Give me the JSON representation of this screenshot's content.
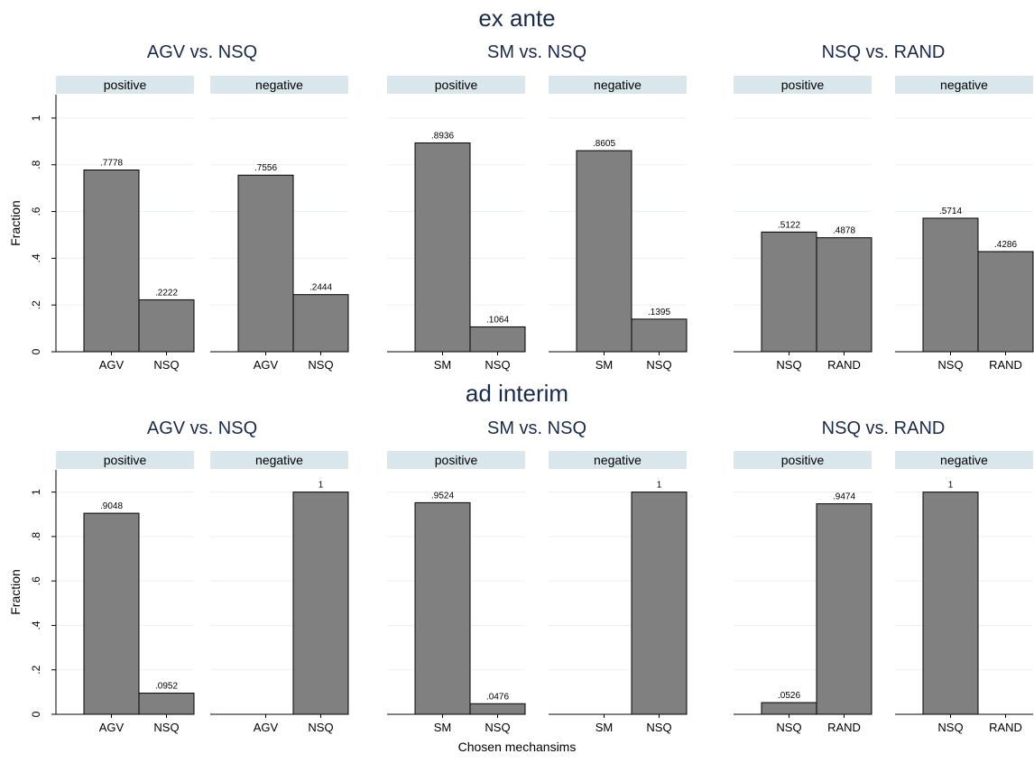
{
  "chart_data": {
    "type": "bar",
    "xlabel": "Chosen mechansims",
    "ylabel": "Fraction",
    "ylim": [
      0,
      1.1
    ],
    "yticks": [
      0,
      0.2,
      0.4,
      0.6,
      0.8,
      1
    ],
    "ytick_labels": [
      "0",
      ".2",
      ".4",
      ".6",
      ".8",
      "1"
    ],
    "grid": true,
    "colors": {
      "bar": "#808080",
      "bar_edge": "#000000",
      "strip": "#d9e6eb",
      "title": "#1a2a4a",
      "grid": "#eaf1f3"
    },
    "rows": [
      {
        "title": "ex ante",
        "groups": [
          {
            "title": "AGV vs. NSQ",
            "panels": [
              {
                "strip": "positive",
                "categories": [
                  "AGV",
                  "NSQ"
                ],
                "values": [
                  0.7778,
                  0.2222
                ],
                "value_labels": [
                  ".7778",
                  ".2222"
                ]
              },
              {
                "strip": "negative",
                "categories": [
                  "AGV",
                  "NSQ"
                ],
                "values": [
                  0.7556,
                  0.2444
                ],
                "value_labels": [
                  ".7556",
                  ".2444"
                ]
              }
            ]
          },
          {
            "title": "SM vs. NSQ",
            "panels": [
              {
                "strip": "positive",
                "categories": [
                  "SM",
                  "NSQ"
                ],
                "values": [
                  0.8936,
                  0.1064
                ],
                "value_labels": [
                  ".8936",
                  ".1064"
                ]
              },
              {
                "strip": "negative",
                "categories": [
                  "SM",
                  "NSQ"
                ],
                "values": [
                  0.8605,
                  0.1395
                ],
                "value_labels": [
                  ".8605",
                  ".1395"
                ]
              }
            ]
          },
          {
            "title": "NSQ vs. RAND",
            "panels": [
              {
                "strip": "positive",
                "categories": [
                  "NSQ",
                  "RAND"
                ],
                "values": [
                  0.5122,
                  0.4878
                ],
                "value_labels": [
                  ".5122",
                  ".4878"
                ]
              },
              {
                "strip": "negative",
                "categories": [
                  "NSQ",
                  "RAND"
                ],
                "values": [
                  0.5714,
                  0.4286
                ],
                "value_labels": [
                  ".5714",
                  ".4286"
                ]
              }
            ]
          }
        ]
      },
      {
        "title": "ad interim",
        "groups": [
          {
            "title": "AGV vs. NSQ",
            "panels": [
              {
                "strip": "positive",
                "categories": [
                  "AGV",
                  "NSQ"
                ],
                "values": [
                  0.9048,
                  0.0952
                ],
                "value_labels": [
                  ".9048",
                  ".0952"
                ]
              },
              {
                "strip": "negative",
                "categories": [
                  "AGV",
                  "NSQ"
                ],
                "values": [
                  0,
                  1
                ],
                "value_labels": [
                  "",
                  "1"
                ]
              }
            ]
          },
          {
            "title": "SM vs. NSQ",
            "panels": [
              {
                "strip": "positive",
                "categories": [
                  "SM",
                  "NSQ"
                ],
                "values": [
                  0.9524,
                  0.0476
                ],
                "value_labels": [
                  ".9524",
                  ".0476"
                ]
              },
              {
                "strip": "negative",
                "categories": [
                  "SM",
                  "NSQ"
                ],
                "values": [
                  0,
                  1
                ],
                "value_labels": [
                  "",
                  "1"
                ]
              }
            ]
          },
          {
            "title": "NSQ vs. RAND",
            "panels": [
              {
                "strip": "positive",
                "categories": [
                  "NSQ",
                  "RAND"
                ],
                "values": [
                  0.0526,
                  0.9474
                ],
                "value_labels": [
                  ".0526",
                  ".9474"
                ]
              },
              {
                "strip": "negative",
                "categories": [
                  "NSQ",
                  "RAND"
                ],
                "values": [
                  1,
                  0
                ],
                "value_labels": [
                  "1",
                  ""
                ]
              }
            ]
          }
        ]
      }
    ]
  }
}
